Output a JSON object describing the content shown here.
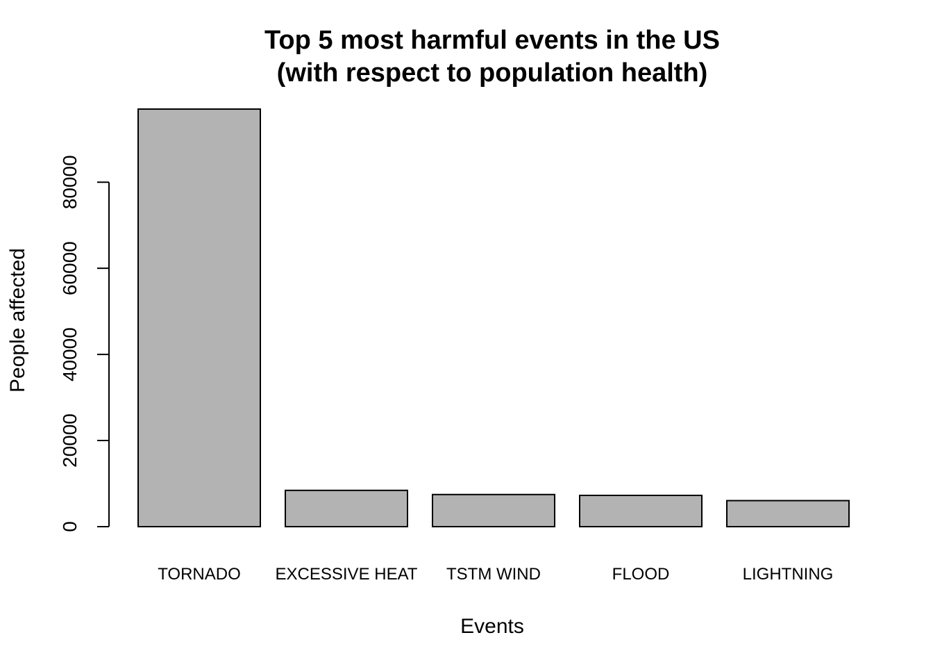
{
  "chart_data": {
    "type": "bar",
    "title_lines": [
      "Top 5 most harmful events in the US",
      "(with respect to population health)"
    ],
    "xlabel": "Events",
    "ylabel": "People affected",
    "categories": [
      "TORNADO",
      "EXCESSIVE HEAT",
      "TSTM WIND",
      "FLOOD",
      "LIGHTNING"
    ],
    "values": [
      96979,
      8428,
      7461,
      7259,
      6046
    ],
    "y_ticks": [
      0,
      20000,
      40000,
      60000,
      80000
    ],
    "y_tick_labels": [
      "0",
      "20000",
      "40000",
      "60000",
      "80000"
    ],
    "ylim": [
      0,
      96979
    ],
    "grid": false,
    "legend": "none",
    "bar_color": "#b3b3b3",
    "bar_border_color": "#000000"
  }
}
